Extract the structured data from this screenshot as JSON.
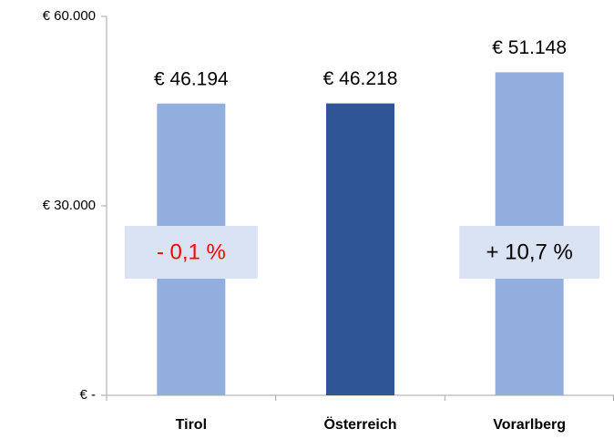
{
  "chart_data": {
    "type": "bar",
    "categories": [
      "Tirol",
      "Österreich",
      "Vorarlberg"
    ],
    "values": [
      46194,
      46218,
      51148
    ],
    "value_labels": [
      "€ 46.194",
      "€ 46.218",
      "€ 51.148"
    ],
    "colors": [
      "#91aede",
      "#2f5597",
      "#91aede"
    ],
    "ylim": [
      0,
      60000
    ],
    "yticks": [
      {
        "value": 0,
        "label": "€ -"
      },
      {
        "value": 30000,
        "label": "€ 30.000"
      },
      {
        "value": 60000,
        "label": "€ 60.000"
      }
    ],
    "grid": false,
    "annotations": [
      {
        "text": "- 0,1 %",
        "color": "#ff0000"
      },
      {
        "text": "+ 10,7 %",
        "color": "#000000"
      }
    ]
  }
}
